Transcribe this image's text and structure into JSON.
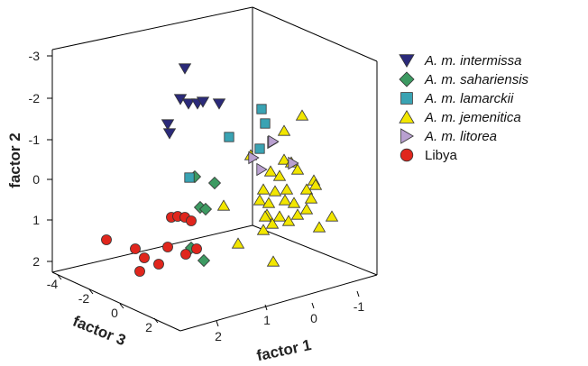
{
  "chart_data": {
    "type": "scatter",
    "dimensions": 3,
    "axes": {
      "x": {
        "label": "factor 1",
        "ticks": [
          "2",
          "1",
          "0",
          "-1"
        ]
      },
      "y": {
        "label": "factor 2",
        "ticks": [
          "-3",
          "-2",
          "-1",
          "0",
          "1",
          "2"
        ]
      },
      "z": {
        "label": "factor 3",
        "ticks": [
          "-4",
          "-2",
          "0",
          "2"
        ]
      }
    },
    "legend": {
      "placement": "right",
      "entries": [
        {
          "label": "A. m. intermissa",
          "italic": true,
          "marker": "triangle-down",
          "color": "#2b2a7a"
        },
        {
          "label": "A. m. sahariensis",
          "italic": true,
          "marker": "diamond",
          "color": "#3d9a62"
        },
        {
          "label": "A. m. lamarckii",
          "italic": true,
          "marker": "square",
          "color": "#3aa3b3"
        },
        {
          "label": "A. m. jemenitica",
          "italic": true,
          "marker": "triangle-up",
          "color": "#f2e600"
        },
        {
          "label": "A. m. litorea",
          "italic": true,
          "marker": "triangle-right",
          "color": "#b9a0d0"
        },
        {
          "label": "Libya",
          "italic": false,
          "marker": "circle",
          "color": "#e0261d"
        }
      ]
    },
    "series": [
      {
        "name": "A. m. intermissa",
        "points": [
          [
            205,
            76
          ],
          [
            200,
            110
          ],
          [
            209,
            115
          ],
          [
            219,
            115
          ],
          [
            225,
            113
          ],
          [
            243,
            115
          ],
          [
            186,
            138
          ],
          [
            188,
            148
          ]
        ]
      },
      {
        "name": "A. m. sahariensis",
        "points": [
          [
            216,
            196
          ],
          [
            238,
            203
          ],
          [
            222,
            230
          ],
          [
            228,
            232
          ],
          [
            212,
            275
          ],
          [
            226,
            289
          ]
        ]
      },
      {
        "name": "A. m. lamarckii",
        "points": [
          [
            290,
            121
          ],
          [
            294,
            137
          ],
          [
            254,
            152
          ],
          [
            288,
            165
          ],
          [
            210,
            197
          ]
        ]
      },
      {
        "name": "A. m. jemenitica",
        "points": [
          [
            335,
            128
          ],
          [
            315,
            145
          ],
          [
            278,
            172
          ],
          [
            315,
            177
          ],
          [
            323,
            180
          ],
          [
            300,
            190
          ],
          [
            310,
            195
          ],
          [
            330,
            188
          ],
          [
            348,
            200
          ],
          [
            292,
            210
          ],
          [
            305,
            212
          ],
          [
            318,
            210
          ],
          [
            340,
            210
          ],
          [
            350,
            205
          ],
          [
            345,
            220
          ],
          [
            288,
            222
          ],
          [
            298,
            225
          ],
          [
            316,
            222
          ],
          [
            326,
            225
          ],
          [
            340,
            232
          ],
          [
            296,
            238
          ],
          [
            310,
            240
          ],
          [
            330,
            238
          ],
          [
            302,
            248
          ],
          [
            292,
            255
          ],
          [
            354,
            252
          ],
          [
            368,
            240
          ],
          [
            248,
            228
          ],
          [
            264,
            270
          ],
          [
            303,
            290
          ],
          [
            294,
            240
          ],
          [
            320,
            245
          ]
        ]
      },
      {
        "name": "A. m. litorea",
        "points": [
          [
            302,
            158
          ],
          [
            303,
            157
          ],
          [
            281,
            175
          ],
          [
            325,
            181
          ],
          [
            290,
            188
          ]
        ]
      },
      {
        "name": "Libya",
        "points": [
          [
            190,
            241
          ],
          [
            197,
            240
          ],
          [
            205,
            241
          ],
          [
            212,
            245
          ],
          [
            118,
            266
          ],
          [
            150,
            276
          ],
          [
            186,
            274
          ],
          [
            160,
            286
          ],
          [
            176,
            293
          ],
          [
            206,
            282
          ],
          [
            218,
            276
          ],
          [
            155,
            301
          ]
        ]
      }
    ]
  }
}
